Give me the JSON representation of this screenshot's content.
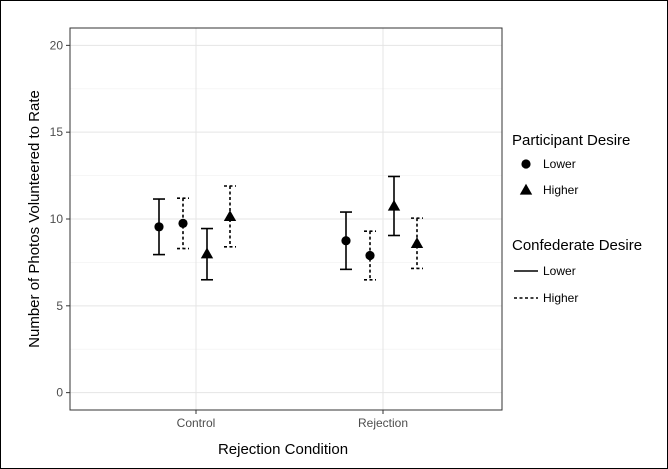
{
  "chart_data": {
    "type": "scatter",
    "xlabel": "Rejection Condition",
    "ylabel": "Number of Photos Volunteered to Rate",
    "categories": [
      "Control",
      "Rejection"
    ],
    "ylim": [
      -1,
      21
    ],
    "yticks": [
      0,
      5,
      10,
      15,
      20
    ],
    "grid": true,
    "legend_placement": "right",
    "legends": [
      {
        "title": "Participant Desire",
        "kind": "shape",
        "entries": [
          {
            "label": "Lower",
            "shape": "circle"
          },
          {
            "label": "Higher",
            "shape": "triangle"
          }
        ]
      },
      {
        "title": "Confederate Desire",
        "kind": "linetype",
        "entries": [
          {
            "label": "Lower",
            "linetype": "solid"
          },
          {
            "label": "Higher",
            "linetype": "dashed"
          }
        ]
      }
    ],
    "series": [
      {
        "participant_desire": "Lower",
        "confederate_desire": "Lower",
        "shape": "circle",
        "linetype": "solid",
        "points": [
          {
            "x": "Control",
            "y": 9.55,
            "ymin": 7.95,
            "ymax": 11.15
          },
          {
            "x": "Rejection",
            "y": 8.75,
            "ymin": 7.1,
            "ymax": 10.4
          }
        ]
      },
      {
        "participant_desire": "Lower",
        "confederate_desire": "Higher",
        "shape": "circle",
        "linetype": "dashed",
        "points": [
          {
            "x": "Control",
            "y": 9.75,
            "ymin": 8.3,
            "ymax": 11.2
          },
          {
            "x": "Rejection",
            "y": 7.9,
            "ymin": 6.5,
            "ymax": 9.3
          }
        ]
      },
      {
        "participant_desire": "Higher",
        "confederate_desire": "Lower",
        "shape": "triangle",
        "linetype": "solid",
        "points": [
          {
            "x": "Control",
            "y": 8.0,
            "ymin": 6.5,
            "ymax": 9.45
          },
          {
            "x": "Rejection",
            "y": 10.75,
            "ymin": 9.05,
            "ymax": 12.45
          }
        ]
      },
      {
        "participant_desire": "Higher",
        "confederate_desire": "Higher",
        "shape": "triangle",
        "linetype": "dashed",
        "points": [
          {
            "x": "Control",
            "y": 10.15,
            "ymin": 8.4,
            "ymax": 11.9
          },
          {
            "x": "Rejection",
            "y": 8.6,
            "ymin": 7.15,
            "ymax": 10.05
          }
        ]
      }
    ]
  }
}
